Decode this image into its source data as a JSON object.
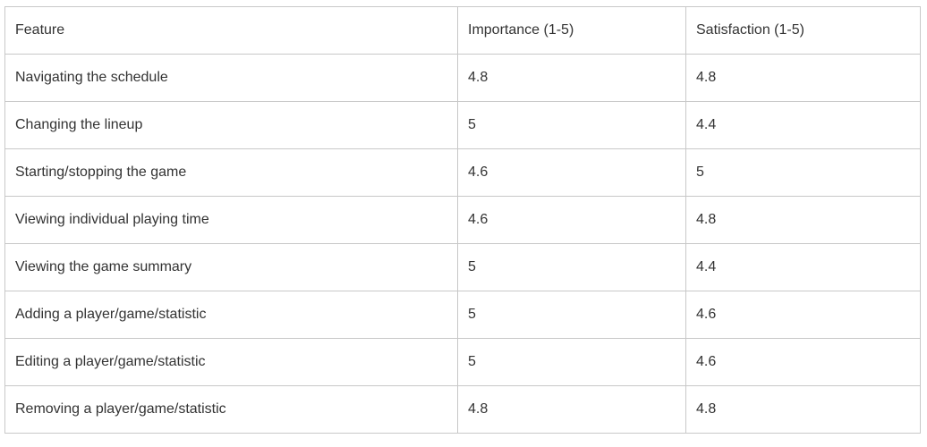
{
  "table": {
    "headers": [
      "Feature",
      "Importance (1-5)",
      "Satisfaction (1-5)"
    ],
    "rows": [
      [
        "Navigating the schedule",
        "4.8",
        "4.8"
      ],
      [
        "Changing the lineup",
        "5",
        "4.4"
      ],
      [
        "Starting/stopping the game",
        "4.6",
        "5"
      ],
      [
        "Viewing individual playing time",
        "4.6",
        "4.8"
      ],
      [
        "Viewing the game summary",
        "5",
        "4.4"
      ],
      [
        "Adding a player/game/statistic",
        "5",
        "4.6"
      ],
      [
        "Editing a player/game/statistic",
        "5",
        "4.6"
      ],
      [
        "Removing a player/game/statistic",
        "4.8",
        "4.8"
      ]
    ]
  }
}
